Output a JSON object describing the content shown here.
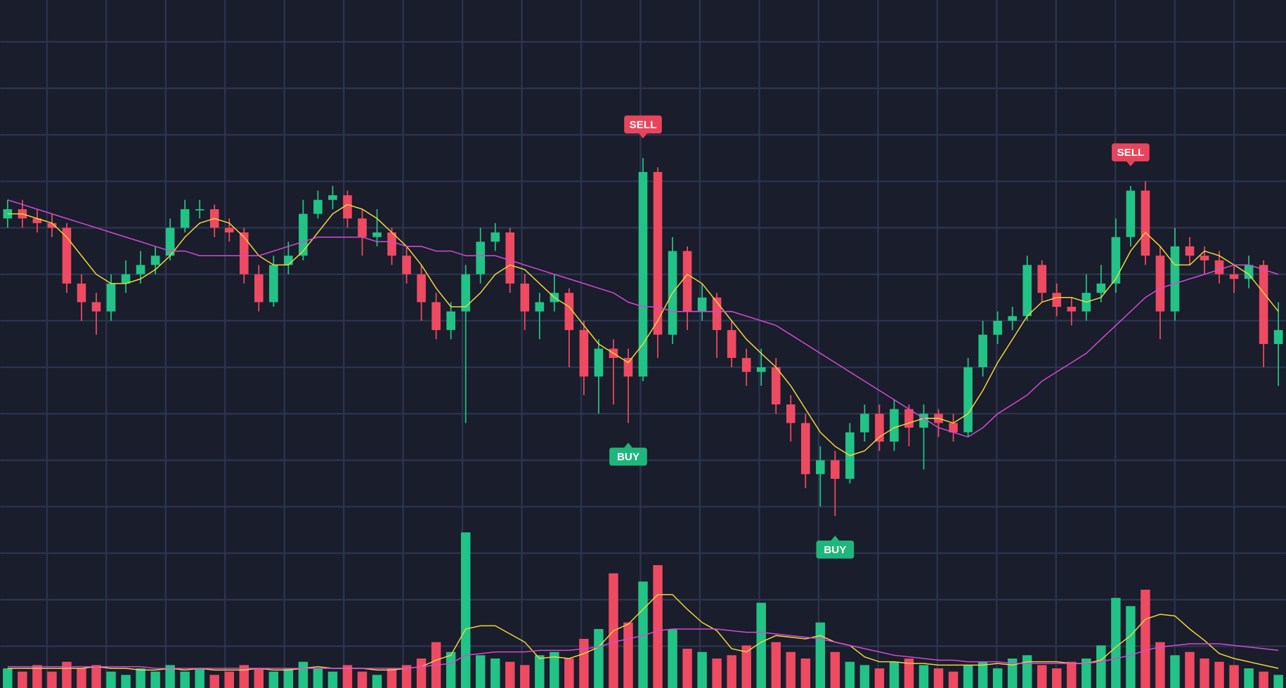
{
  "chart_data": {
    "type": "candlestick",
    "open": [
      82,
      84,
      82,
      81,
      80,
      68,
      64,
      62,
      68,
      70,
      72,
      74,
      80,
      84,
      84,
      80,
      79,
      70,
      64,
      72,
      74,
      83,
      86,
      87,
      82,
      78,
      79,
      74,
      70,
      64,
      58,
      62,
      70,
      77,
      79,
      68,
      62,
      64,
      66,
      58,
      48,
      54,
      52,
      48,
      92,
      57,
      75,
      62,
      65,
      58,
      52,
      49,
      50,
      42,
      38,
      27,
      30,
      26,
      36,
      40,
      34,
      41,
      37,
      40,
      38,
      36,
      50,
      57,
      60,
      61,
      72,
      66,
      63,
      62,
      66,
      68,
      78,
      88,
      74,
      62,
      76,
      74,
      73,
      70,
      69,
      72,
      55
    ],
    "high": [
      86,
      86,
      84,
      83,
      81,
      70,
      66,
      70,
      73,
      75,
      76,
      82,
      86,
      86,
      85,
      82,
      80,
      72,
      74,
      77,
      86,
      88,
      89,
      88,
      84,
      84,
      80,
      76,
      72,
      66,
      64,
      72,
      80,
      81,
      80,
      70,
      66,
      70,
      67,
      60,
      56,
      56,
      54,
      95,
      93,
      78,
      76,
      68,
      66,
      60,
      54,
      54,
      52,
      44,
      40,
      33,
      32,
      38,
      42,
      42,
      43,
      42,
      42,
      41,
      40,
      52,
      60,
      62,
      63,
      74,
      73,
      68,
      65,
      70,
      72,
      82,
      89,
      90,
      76,
      80,
      78,
      76,
      75,
      72,
      74,
      73,
      64
    ],
    "low": [
      80,
      80,
      79,
      78,
      66,
      60,
      57,
      60,
      66,
      68,
      70,
      73,
      79,
      82,
      78,
      77,
      68,
      62,
      63,
      70,
      73,
      82,
      84,
      80,
      74,
      76,
      72,
      68,
      60,
      56,
      56,
      38,
      68,
      75,
      66,
      58,
      56,
      62,
      50,
      44,
      40,
      42,
      38,
      47,
      52,
      55,
      58,
      60,
      52,
      50,
      46,
      46,
      40,
      34,
      24,
      20,
      18,
      25,
      34,
      32,
      32,
      33,
      28,
      35,
      34,
      35,
      48,
      55,
      58,
      60,
      64,
      61,
      59,
      60,
      64,
      66,
      76,
      72,
      56,
      60,
      72,
      70,
      68,
      66,
      67,
      50,
      46
    ],
    "close": [
      84,
      82,
      81,
      80,
      68,
      64,
      62,
      68,
      70,
      72,
      74,
      80,
      84,
      84,
      80,
      79,
      70,
      64,
      72,
      74,
      83,
      86,
      87,
      82,
      78,
      79,
      74,
      70,
      64,
      58,
      62,
      70,
      77,
      79,
      68,
      62,
      64,
      66,
      58,
      48,
      54,
      52,
      48,
      92,
      57,
      75,
      62,
      65,
      58,
      52,
      49,
      50,
      42,
      38,
      27,
      30,
      26,
      36,
      40,
      34,
      41,
      37,
      40,
      38,
      36,
      50,
      57,
      60,
      61,
      72,
      66,
      63,
      62,
      66,
      68,
      78,
      88,
      74,
      62,
      76,
      74,
      73,
      70,
      69,
      72,
      55,
      58
    ],
    "up_color": "#22c386",
    "down_color": "#ee4a62",
    "ylim": [
      -19,
      129
    ],
    "yticks": [
      -10,
      0,
      10,
      20,
      30,
      40,
      50,
      60,
      70,
      80,
      90,
      100,
      110,
      120
    ],
    "grid": true,
    "series": [
      {
        "color": "#f2d33c",
        "values": [
          83,
          83,
          82,
          81,
          78,
          74,
          70,
          68,
          68,
          69,
          71,
          74,
          78,
          81,
          82,
          81,
          78,
          74,
          72,
          72,
          75,
          79,
          83,
          85,
          84,
          82,
          79,
          76,
          72,
          67,
          63,
          63,
          66,
          70,
          72,
          71,
          68,
          65,
          63,
          59,
          55,
          53,
          51,
          55,
          60,
          66,
          70,
          68,
          64,
          60,
          56,
          53,
          50,
          46,
          41,
          36,
          33,
          31,
          32,
          35,
          37,
          38,
          39,
          39,
          38,
          40,
          45,
          51,
          56,
          61,
          64,
          65,
          65,
          64,
          65,
          69,
          75,
          79,
          76,
          72,
          72,
          75,
          74,
          72,
          70,
          66,
          62
        ]
      },
      {
        "color": "#d24ad4",
        "values": [
          86,
          85,
          84,
          83,
          82,
          81,
          80,
          79,
          78,
          77,
          76,
          75,
          75,
          74,
          74,
          74,
          74,
          74,
          75,
          76,
          77,
          78,
          78,
          78,
          78,
          77,
          77,
          76,
          76,
          75,
          75,
          74,
          74,
          74,
          73,
          72,
          71,
          70,
          69,
          68,
          67,
          66,
          64,
          63,
          63,
          62,
          62,
          62,
          62,
          62,
          61,
          60,
          59,
          57,
          55,
          53,
          51,
          49,
          47,
          45,
          43,
          41,
          39,
          37,
          36,
          35,
          37,
          40,
          42,
          44,
          47,
          49,
          51,
          53,
          56,
          59,
          62,
          65,
          67,
          68,
          69,
          70,
          71,
          72,
          72,
          71,
          70
        ]
      }
    ],
    "volume": {
      "ylim": [
        0,
        100
      ],
      "values": [
        12,
        10,
        14,
        10,
        16,
        12,
        14,
        10,
        8,
        12,
        10,
        14,
        10,
        12,
        8,
        10,
        14,
        12,
        10,
        12,
        16,
        12,
        10,
        14,
        10,
        8,
        12,
        14,
        18,
        28,
        22,
        95,
        20,
        18,
        16,
        14,
        20,
        22,
        18,
        30,
        36,
        70,
        40,
        65,
        75,
        36,
        24,
        22,
        18,
        20,
        26,
        52,
        28,
        22,
        18,
        40,
        22,
        16,
        14,
        12,
        16,
        18,
        14,
        12,
        10,
        14,
        16,
        12,
        18,
        20,
        14,
        12,
        16,
        18,
        26,
        55,
        50,
        60,
        28,
        20,
        22,
        18,
        16,
        14,
        12,
        10,
        8
      ],
      "series": [
        {
          "color": "#f2d33c",
          "values": [
            12,
            12,
            12,
            12,
            12,
            12,
            13,
            12,
            12,
            11,
            11,
            12,
            11,
            12,
            11,
            11,
            11,
            12,
            11,
            11,
            12,
            13,
            12,
            12,
            12,
            11,
            11,
            12,
            13,
            17,
            20,
            36,
            38,
            38,
            33,
            28,
            18,
            19,
            18,
            21,
            25,
            35,
            39,
            48,
            57,
            57,
            48,
            40,
            35,
            24,
            22,
            28,
            32,
            31,
            30,
            32,
            28,
            26,
            19,
            16,
            16,
            15,
            15,
            14,
            14,
            14,
            14,
            15,
            14,
            16,
            16,
            16,
            15,
            15,
            17,
            25,
            32,
            42,
            45,
            44,
            36,
            29,
            21,
            18,
            16,
            14,
            12
          ]
        },
        {
          "color": "#d24ad4",
          "values": [
            13,
            13,
            13,
            13,
            13,
            13,
            13,
            13,
            13,
            13,
            12,
            12,
            12,
            12,
            12,
            12,
            12,
            12,
            12,
            12,
            12,
            12,
            12,
            12,
            12,
            12,
            12,
            12,
            13,
            14,
            15,
            20,
            21,
            22,
            22,
            22,
            23,
            23,
            23,
            24,
            25,
            28,
            30,
            32,
            35,
            36,
            36,
            36,
            36,
            35,
            34,
            34,
            33,
            32,
            31,
            30,
            28,
            26,
            24,
            22,
            20,
            19,
            18,
            17,
            17,
            16,
            16,
            16,
            15,
            15,
            15,
            15,
            15,
            15,
            16,
            18,
            20,
            23,
            25,
            26,
            27,
            27,
            27,
            26,
            25,
            24,
            23
          ]
        }
      ]
    },
    "annotations": [
      {
        "text": "SELL",
        "at": 43,
        "color": "#e8445c"
      },
      {
        "text": "BUY",
        "at": 42,
        "color": "#1fb67c"
      },
      {
        "text": "BUY",
        "at": 56,
        "color": "#1fb67c"
      },
      {
        "text": "SELL",
        "at": 76,
        "color": "#e8445c"
      }
    ]
  }
}
